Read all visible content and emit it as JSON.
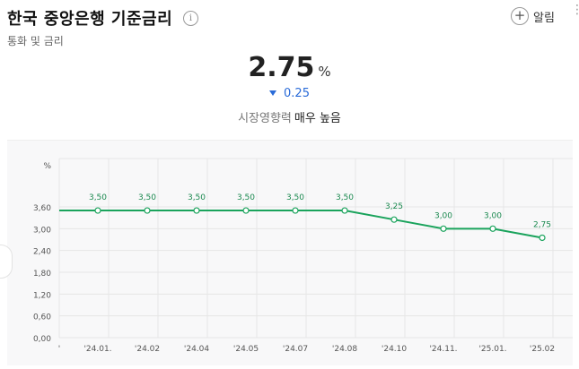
{
  "header": {
    "title": "한국 중앙은행 기준금리",
    "info_icon_glyph": "i",
    "subtitle": "통화 및 금리",
    "alarm_label": "알림",
    "plus_icon_glyph": "+",
    "more_icon_glyph": "⋮"
  },
  "summary": {
    "value": "2.75",
    "unit": "%",
    "change": "0.25",
    "change_direction": "down",
    "impact_label": "시장영향력",
    "impact_level": "매우 높음"
  },
  "colors": {
    "line": "#1aa35c",
    "down": "#2a6bd8",
    "panel": "#f8f8f9",
    "grid": "#e6e6e6"
  },
  "chart_data": {
    "type": "line",
    "ylabel": "%",
    "ylim": [
      0,
      3.6
    ],
    "yticks": [
      "0,00",
      "0,60",
      "1,20",
      "1,80",
      "2,40",
      "3,00",
      "3,60"
    ],
    "yticks_values": [
      0,
      0.6,
      1.2,
      1.8,
      2.4,
      3.0,
      3.6
    ],
    "x": [
      "'24.01.",
      "'24.02",
      "'24.04",
      "'24.05",
      "'24.07",
      "'24.08",
      "'24.10",
      "'24.11.",
      "'25.01.",
      "'25.02"
    ],
    "values": [
      3.5,
      3.5,
      3.5,
      3.5,
      3.5,
      3.5,
      3.25,
      3.0,
      3.0,
      2.75
    ],
    "data_labels": [
      "3,50",
      "3,50",
      "3,50",
      "3,50",
      "3,50",
      "3,50",
      "3,25",
      "3,00",
      "3,00",
      "2,75"
    ],
    "leading_tick": "'",
    "grid": true,
    "legend": "none"
  }
}
